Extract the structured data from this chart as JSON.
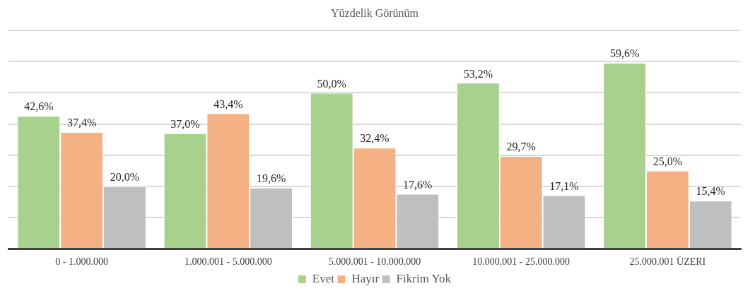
{
  "chart_data": {
    "type": "bar",
    "title": "Yüzdelik Görünüm",
    "categories": [
      "0 - 1.000.000",
      "1.000.001 - 5.000.000",
      "5.000.001 - 10.000.000",
      "10.000.001 - 25.000.000",
      "25.000.001 ÜZERI"
    ],
    "series": [
      {
        "name": "Evet",
        "color": "#a9d18e",
        "values": [
          42.6,
          37.0,
          50.0,
          53.2,
          59.6
        ],
        "value_labels": [
          "42,6%",
          "37,0%",
          "50,0%",
          "53,2%",
          "59,6%"
        ]
      },
      {
        "name": "Hayır",
        "color": "#f4b183",
        "values": [
          37.4,
          43.4,
          32.4,
          29.7,
          25.0
        ],
        "value_labels": [
          "37,4%",
          "43,4%",
          "32,4%",
          "29,7%",
          "25,0%"
        ]
      },
      {
        "name": "Fikrim Yok",
        "color": "#bfbfbf",
        "values": [
          20.0,
          19.6,
          17.6,
          17.1,
          15.4
        ],
        "value_labels": [
          "20,0%",
          "19,6%",
          "17,6%",
          "17,1%",
          "15,4%"
        ]
      }
    ],
    "ylim": [
      0,
      70
    ],
    "tick_labels": "x",
    "grid": "y",
    "legend": "bottom"
  }
}
